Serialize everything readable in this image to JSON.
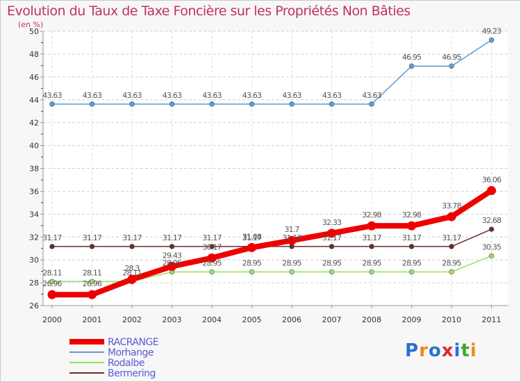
{
  "chart_data": {
    "type": "line",
    "title": "Evolution du Taux de Taxe Foncière sur les Propriétés Non Bâties",
    "subtitle": "(en %)",
    "xlabel": "",
    "ylabel": "",
    "x": [
      "2000",
      "2001",
      "2002",
      "2003",
      "2004",
      "2005",
      "2006",
      "2007",
      "2008",
      "2009",
      "2010",
      "2011"
    ],
    "ylim": [
      26,
      50
    ],
    "yticks": [
      "26",
      "28",
      "30",
      "32",
      "34",
      "36",
      "38",
      "40",
      "42",
      "44",
      "46",
      "48",
      "50"
    ],
    "grid": true,
    "legend_position": "bottom-left",
    "series": [
      {
        "name": "RACRANGE",
        "color": "#ee0000",
        "values": [
          26.96,
          26.96,
          28.3,
          29.43,
          30.17,
          31.08,
          31.7,
          32.33,
          32.98,
          32.98,
          33.78,
          36.06
        ],
        "labels": [
          "26.96",
          "26.96",
          "28.3",
          "29.43",
          "30.17",
          "31.08",
          "31.7",
          "32.33",
          "32.98",
          "32.98",
          "33.78",
          "36.06"
        ]
      },
      {
        "name": "Morhange",
        "color": "#5b9bd5",
        "values": [
          43.63,
          43.63,
          43.63,
          43.63,
          43.63,
          43.63,
          43.63,
          43.63,
          43.63,
          46.95,
          46.95,
          49.23
        ],
        "labels": [
          "43.63",
          "43.63",
          "43.63",
          "43.63",
          "43.63",
          "43.63",
          "43.63",
          "43.63",
          "43.63",
          "46.95",
          "46.95",
          "49.23"
        ]
      },
      {
        "name": "Rodalbe",
        "color": "#99dd66",
        "values": [
          28.11,
          28.11,
          28.11,
          28.95,
          28.95,
          28.95,
          28.95,
          28.95,
          28.95,
          28.95,
          28.95,
          30.35
        ],
        "labels": [
          "28.11",
          "28.11",
          "28.11",
          "28.95",
          "28.95",
          "28.95",
          "28.95",
          "28.95",
          "28.95",
          "28.95",
          "28.95",
          "30.35"
        ]
      },
      {
        "name": "Bermering",
        "color": "#6b2a2a",
        "values": [
          31.17,
          31.17,
          31.17,
          31.17,
          31.17,
          31.17,
          31.17,
          31.17,
          31.17,
          31.17,
          31.17,
          32.68
        ],
        "labels": [
          "31.17",
          "31.17",
          "31.17",
          "31.17",
          "31.17",
          "31.17",
          "31.17",
          "31.17",
          "31.17",
          "31.17",
          "31.17",
          "32.68"
        ]
      }
    ]
  },
  "logo": {
    "text": "Proxiti",
    "colors": [
      "#2a6fd6",
      "#f08a1e",
      "#2a6fd6",
      "#d92d2d",
      "#2a6fd6",
      "#3aaa35",
      "#f08a1e"
    ]
  }
}
